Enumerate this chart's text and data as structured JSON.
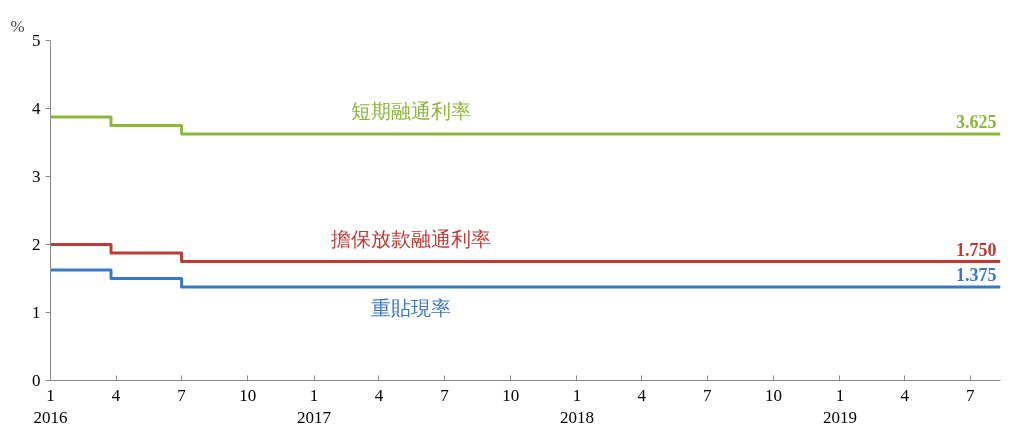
{
  "chart_data": {
    "type": "step",
    "ylabel": "%",
    "x": [
      "2016-01-01",
      "2016-03-25",
      "2016-07-01",
      "2019-08-12"
    ],
    "series": [
      {
        "name": "短期融通利率",
        "color": "#8db63c",
        "values": [
          3.875,
          3.75,
          3.625,
          3.625
        ],
        "value_labels": [
          null,
          null,
          null,
          "3.625"
        ]
      },
      {
        "name": "擔保放款融通利率",
        "color": "#be3a34",
        "values": [
          2.0,
          1.875,
          1.75,
          1.75
        ],
        "value_labels": [
          null,
          null,
          null,
          "1.750"
        ]
      },
      {
        "name": "重貼現率",
        "color": "#3b78c2",
        "values": [
          1.625,
          1.5,
          1.375,
          1.375
        ],
        "value_labels": [
          null,
          null,
          null,
          "1.375"
        ]
      }
    ],
    "xlim": [
      "2016-01-01",
      "2019-08-12"
    ],
    "xticks": [
      {
        "value": "2016-01-01",
        "label": "1\n2016"
      },
      {
        "value": "2016-04-01",
        "label": "4"
      },
      {
        "value": "2016-07-01",
        "label": "7"
      },
      {
        "value": "2016-10-01",
        "label": "10"
      },
      {
        "value": "2017-01-01",
        "label": "1\n2017"
      },
      {
        "value": "2017-04-01",
        "label": "4"
      },
      {
        "value": "2017-07-01",
        "label": "7"
      },
      {
        "value": "2017-10-01",
        "label": "10"
      },
      {
        "value": "2018-01-01",
        "label": "1\n2018"
      },
      {
        "value": "2018-04-01",
        "label": "4"
      },
      {
        "value": "2018-07-01",
        "label": "7"
      },
      {
        "value": "2018-10-01",
        "label": "10"
      },
      {
        "value": "2019-01-01",
        "label": "1\n2019"
      },
      {
        "value": "2019-04-01",
        "label": "4"
      },
      {
        "value": "2019-07-01",
        "label": "7"
      }
    ],
    "ylim": [
      0,
      5
    ],
    "yticks": [
      0,
      1,
      2,
      3,
      4,
      5
    ],
    "grid": false,
    "line_style": "solid",
    "marker": "none"
  }
}
